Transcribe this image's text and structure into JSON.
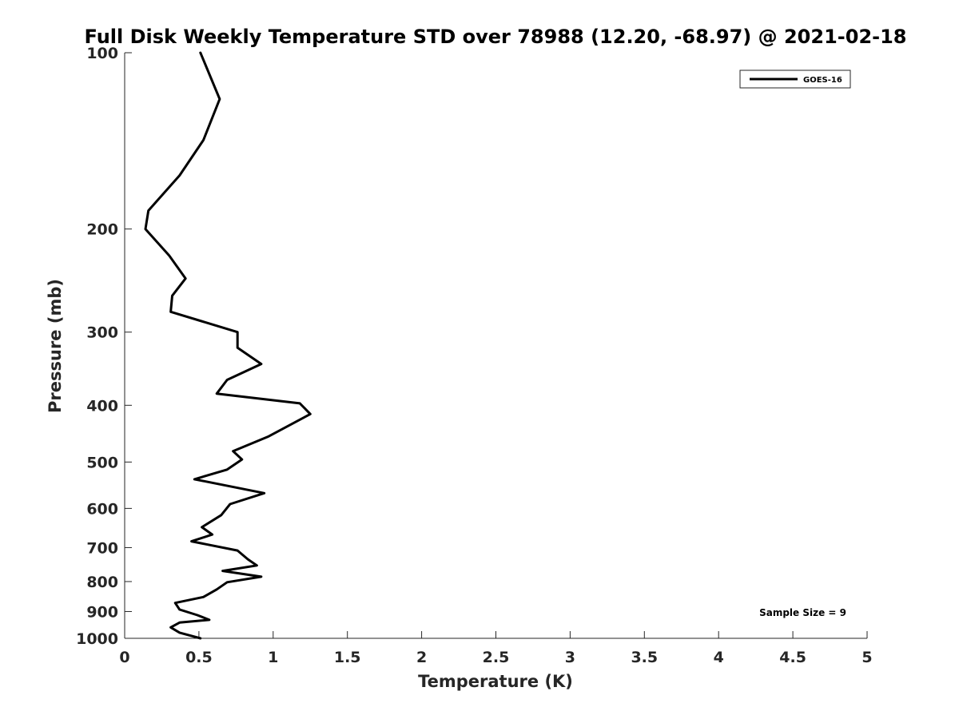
{
  "chart_data": {
    "type": "line",
    "title": "Full Disk Weekly Temperature STD over 78988 (12.20, -68.97) @ 2021-02-18",
    "xlabel": "Temperature (K)",
    "ylabel": "Pressure (mb)",
    "xlim": [
      0,
      5
    ],
    "ylim": [
      100,
      1000
    ],
    "y_scale": "log",
    "y_reversed": true,
    "x_ticks": [
      0,
      0.5,
      1,
      1.5,
      2,
      2.5,
      3,
      3.5,
      4,
      4.5,
      5
    ],
    "x_tick_labels": [
      "0",
      "0.5",
      "1",
      "1.5",
      "2",
      "2.5",
      "3",
      "3.5",
      "4",
      "4.5",
      "5"
    ],
    "y_ticks": [
      100,
      200,
      300,
      400,
      500,
      600,
      700,
      800,
      900,
      1000
    ],
    "y_tick_labels": [
      "100",
      "200",
      "300",
      "400",
      "500",
      "600",
      "700",
      "800",
      "900",
      "1000"
    ],
    "grid": false,
    "legend_position": "top-right",
    "series": [
      {
        "name": "GOES-16",
        "color": "#000000",
        "points": [
          [
            0.51,
            100
          ],
          [
            0.64,
            120
          ],
          [
            0.53,
            141
          ],
          [
            0.37,
            162
          ],
          [
            0.16,
            186
          ],
          [
            0.14,
            200
          ],
          [
            0.3,
            222
          ],
          [
            0.41,
            243
          ],
          [
            0.32,
            260
          ],
          [
            0.31,
            277
          ],
          [
            0.76,
            300
          ],
          [
            0.76,
            319
          ],
          [
            0.92,
            340
          ],
          [
            0.69,
            362
          ],
          [
            0.62,
            382
          ],
          [
            1.18,
            397
          ],
          [
            1.25,
            414
          ],
          [
            0.97,
            452
          ],
          [
            0.73,
            479
          ],
          [
            0.79,
            495
          ],
          [
            0.69,
            515
          ],
          [
            0.47,
            535
          ],
          [
            0.94,
            565
          ],
          [
            0.71,
            590
          ],
          [
            0.65,
            616
          ],
          [
            0.52,
            646
          ],
          [
            0.59,
            665
          ],
          [
            0.45,
            683
          ],
          [
            0.76,
            708
          ],
          [
            0.83,
            733
          ],
          [
            0.89,
            751
          ],
          [
            0.66,
            767
          ],
          [
            0.92,
            785
          ],
          [
            0.69,
            802
          ],
          [
            0.62,
            825
          ],
          [
            0.53,
            850
          ],
          [
            0.34,
            870
          ],
          [
            0.37,
            893
          ],
          [
            0.49,
            913
          ],
          [
            0.57,
            930
          ],
          [
            0.37,
            940
          ],
          [
            0.31,
            958
          ],
          [
            0.37,
            978
          ],
          [
            0.51,
            1000
          ]
        ]
      }
    ],
    "annotations": [
      "Sample Size = 9"
    ]
  }
}
